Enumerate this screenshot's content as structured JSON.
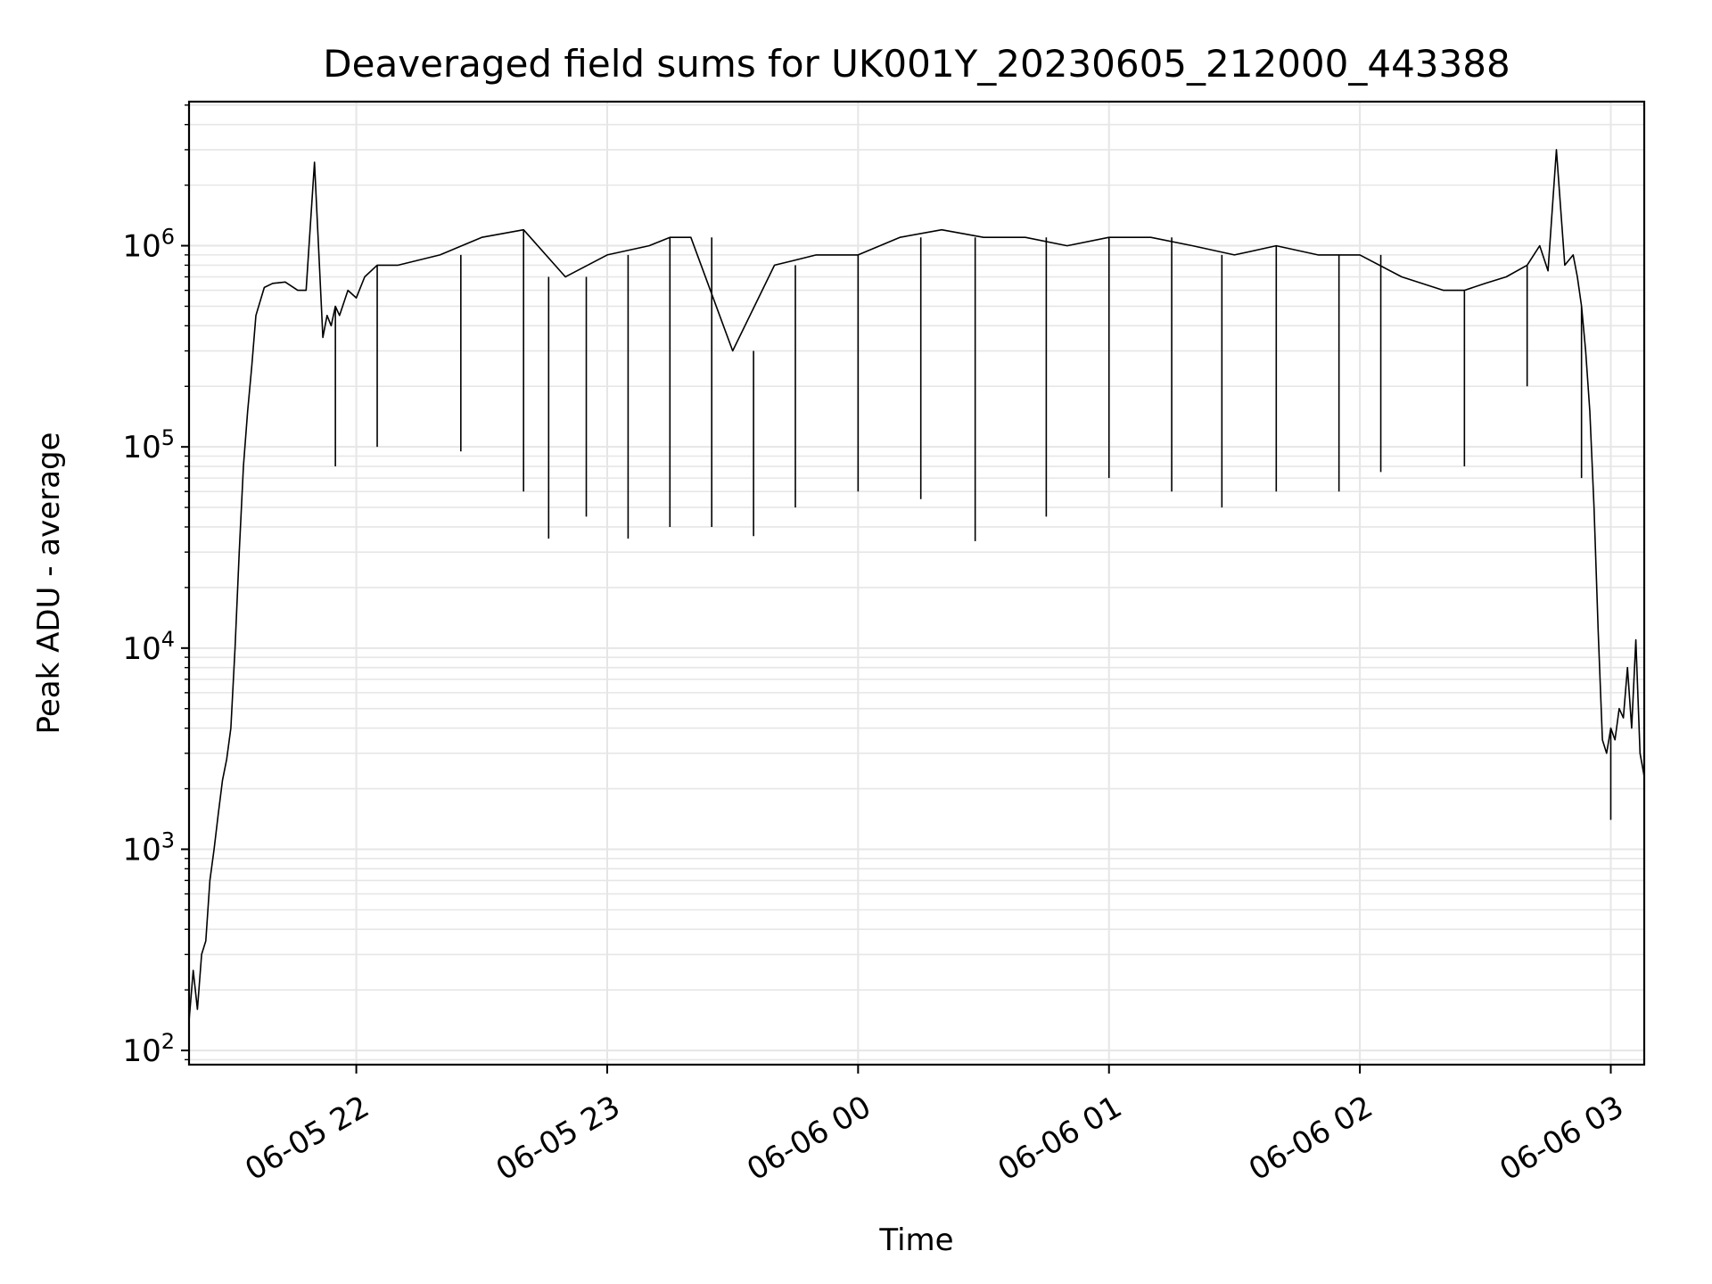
{
  "chart_data": {
    "type": "line",
    "title": "Deaveraged field sums for UK001Y_20230605_212000_443388",
    "xlabel": "Time",
    "ylabel": "Peak ADU - average",
    "yscale": "log",
    "ylim": [
      85,
      5200000
    ],
    "xlim": [
      "2023-06-05 21:20",
      "2023-06-06 03:08"
    ],
    "grid": true,
    "line_color": "#000000",
    "grid_color": "#e6e6e6",
    "x_ticks": [
      {
        "value": "2023-06-05 22:00",
        "label": "06-05 22"
      },
      {
        "value": "2023-06-05 23:00",
        "label": "06-05 23"
      },
      {
        "value": "2023-06-06 00:00",
        "label": "06-06 00"
      },
      {
        "value": "2023-06-06 01:00",
        "label": "06-06 01"
      },
      {
        "value": "2023-06-06 02:00",
        "label": "06-06 02"
      },
      {
        "value": "2023-06-06 03:00",
        "label": "06-06 03"
      }
    ],
    "y_ticks": [
      {
        "value": 100,
        "base": "10",
        "exp": "2"
      },
      {
        "value": 1000,
        "base": "10",
        "exp": "3"
      },
      {
        "value": 10000,
        "base": "10",
        "exp": "4"
      },
      {
        "value": 100000,
        "base": "10",
        "exp": "5"
      },
      {
        "value": 1000000,
        "base": "10",
        "exp": "6"
      }
    ],
    "series": [
      {
        "x": [
          "2023-06-05 21:20",
          "2023-06-05 21:21",
          "2023-06-05 21:22",
          "2023-06-05 21:23",
          "2023-06-05 21:24",
          "2023-06-05 21:25",
          "2023-06-05 21:26",
          "2023-06-05 21:27",
          "2023-06-05 21:28",
          "2023-06-05 21:29",
          "2023-06-05 21:30",
          "2023-06-05 21:31",
          "2023-06-05 21:32",
          "2023-06-05 21:33",
          "2023-06-05 21:34",
          "2023-06-05 21:35",
          "2023-06-05 21:36",
          "2023-06-05 21:38",
          "2023-06-05 21:40",
          "2023-06-05 21:43",
          "2023-06-05 21:46",
          "2023-06-05 21:48",
          "2023-06-05 21:50",
          "2023-06-05 21:52",
          "2023-06-05 21:53",
          "2023-06-05 21:54",
          "2023-06-05 21:55",
          "2023-06-05 21:56",
          "2023-06-05 21:58",
          "2023-06-05 22:00",
          "2023-06-05 22:02",
          "2023-06-05 22:05",
          "2023-06-05 22:10",
          "2023-06-05 22:20",
          "2023-06-05 22:30",
          "2023-06-05 22:40",
          "2023-06-05 22:50",
          "2023-06-05 23:00",
          "2023-06-05 23:10",
          "2023-06-05 23:15",
          "2023-06-05 23:20",
          "2023-06-05 23:30",
          "2023-06-05 23:40",
          "2023-06-05 23:50",
          "2023-06-06 00:00",
          "2023-06-06 00:10",
          "2023-06-06 00:20",
          "2023-06-06 00:30",
          "2023-06-06 00:40",
          "2023-06-06 00:50",
          "2023-06-06 01:00",
          "2023-06-06 01:10",
          "2023-06-06 01:20",
          "2023-06-06 01:30",
          "2023-06-06 01:40",
          "2023-06-06 01:50",
          "2023-06-06 02:00",
          "2023-06-06 02:10",
          "2023-06-06 02:20",
          "2023-06-06 02:25",
          "2023-06-06 02:30",
          "2023-06-06 02:35",
          "2023-06-06 02:40",
          "2023-06-06 02:43",
          "2023-06-06 02:45",
          "2023-06-06 02:47",
          "2023-06-06 02:49",
          "2023-06-06 02:51",
          "2023-06-06 02:52",
          "2023-06-06 02:53",
          "2023-06-06 02:54",
          "2023-06-06 02:55",
          "2023-06-06 02:56",
          "2023-06-06 02:57",
          "2023-06-06 02:58",
          "2023-06-06 02:59",
          "2023-06-06 03:00",
          "2023-06-06 03:01",
          "2023-06-06 03:02",
          "2023-06-06 03:03",
          "2023-06-06 03:04",
          "2023-06-06 03:05",
          "2023-06-06 03:06",
          "2023-06-06 03:07",
          "2023-06-06 03:08"
        ],
        "y": [
          140,
          250,
          160,
          300,
          350,
          700,
          1000,
          1500,
          2200,
          2800,
          4000,
          10000,
          30000,
          80000,
          150000,
          250000,
          450000,
          620000,
          650000,
          660000,
          600000,
          600000,
          2600000,
          350000,
          450000,
          400000,
          500000,
          450000,
          600000,
          550000,
          700000,
          800000,
          800000,
          900000,
          1100000,
          1200000,
          700000,
          900000,
          1000000,
          1100000,
          1100000,
          300000,
          800000,
          900000,
          900000,
          1100000,
          1200000,
          1100000,
          1100000,
          1000000,
          1100000,
          1100000,
          1000000,
          900000,
          1000000,
          900000,
          900000,
          700000,
          600000,
          600000,
          650000,
          700000,
          800000,
          1000000,
          750000,
          3000000,
          800000,
          900000,
          700000,
          500000,
          300000,
          150000,
          50000,
          12000,
          3500,
          3000,
          4000,
          3500,
          5000,
          4500,
          8000,
          4000,
          11000,
          3000,
          2300
        ]
      }
    ],
    "spikes_down": [
      {
        "x": "2023-06-05 21:55",
        "y": 80000
      },
      {
        "x": "2023-06-05 22:05",
        "y": 100000
      },
      {
        "x": "2023-06-05 22:25",
        "y": 95000
      },
      {
        "x": "2023-06-05 22:40",
        "y": 60000
      },
      {
        "x": "2023-06-05 22:46",
        "y": 35000
      },
      {
        "x": "2023-06-05 22:55",
        "y": 45000
      },
      {
        "x": "2023-06-05 23:05",
        "y": 35000
      },
      {
        "x": "2023-06-05 23:15",
        "y": 40000
      },
      {
        "x": "2023-06-05 23:25",
        "y": 40000
      },
      {
        "x": "2023-06-05 23:35",
        "y": 36000
      },
      {
        "x": "2023-06-05 23:45",
        "y": 50000
      },
      {
        "x": "2023-06-06 00:00",
        "y": 60000
      },
      {
        "x": "2023-06-06 00:15",
        "y": 55000
      },
      {
        "x": "2023-06-06 00:28",
        "y": 34000
      },
      {
        "x": "2023-06-06 00:45",
        "y": 45000
      },
      {
        "x": "2023-06-06 01:00",
        "y": 70000
      },
      {
        "x": "2023-06-06 01:15",
        "y": 60000
      },
      {
        "x": "2023-06-06 01:27",
        "y": 50000
      },
      {
        "x": "2023-06-06 01:40",
        "y": 60000
      },
      {
        "x": "2023-06-06 01:55",
        "y": 60000
      },
      {
        "x": "2023-06-06 02:05",
        "y": 75000
      },
      {
        "x": "2023-06-06 02:25",
        "y": 80000
      },
      {
        "x": "2023-06-06 02:40",
        "y": 200000
      },
      {
        "x": "2023-06-06 02:53",
        "y": 70000
      },
      {
        "x": "2023-06-06 03:00",
        "y": 1400
      }
    ]
  }
}
